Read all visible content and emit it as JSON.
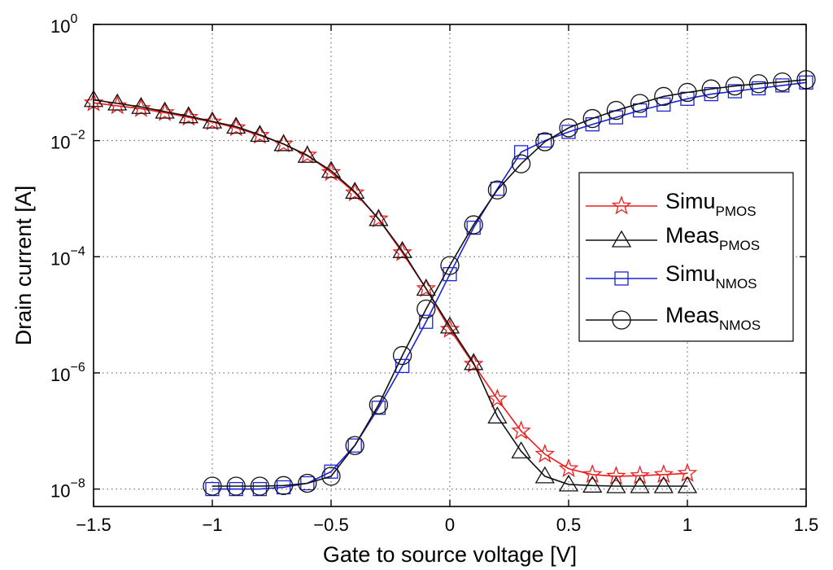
{
  "chart_data": {
    "type": "line",
    "title": "",
    "xlabel": "Gate to source voltage [V]",
    "ylabel": "Drain current [A]",
    "xlim": [
      -1.5,
      1.5
    ],
    "ylim_log10": [
      -8.3,
      0
    ],
    "y_scale": "log",
    "grid": true,
    "legend_position": "right",
    "x_ticks": [
      -1.5,
      -1,
      -0.5,
      0,
      0.5,
      1,
      1.5
    ],
    "x_tick_labels": [
      "−1.5",
      "−1",
      "−0.5",
      "0",
      "0.5",
      "1",
      "1.5"
    ],
    "y_ticks": [
      {
        "base": "10",
        "exp": "0",
        "log": 0
      },
      {
        "base": "10",
        "exp": "−2",
        "log": -2
      },
      {
        "base": "10",
        "exp": "−4",
        "log": -4
      },
      {
        "base": "10",
        "exp": "−6",
        "log": -6
      },
      {
        "base": "10",
        "exp": "−8",
        "log": -8
      }
    ],
    "series": [
      {
        "name": "Simu",
        "sub": "PMOS",
        "color": "#ee1c1c",
        "marker": "star",
        "x": [
          -1.5,
          -1.4,
          -1.3,
          -1.2,
          -1.1,
          -1.0,
          -0.9,
          -0.8,
          -0.7,
          -0.6,
          -0.5,
          -0.4,
          -0.3,
          -0.2,
          -0.1,
          0.0,
          0.1,
          0.2,
          0.3,
          0.4,
          0.5,
          0.6,
          0.7,
          0.8,
          0.9,
          1.0
        ],
        "log10_y": [
          -1.35,
          -1.4,
          -1.45,
          -1.52,
          -1.6,
          -1.68,
          -1.78,
          -1.91,
          -2.06,
          -2.25,
          -2.55,
          -2.9,
          -3.35,
          -3.93,
          -4.55,
          -5.25,
          -5.85,
          -6.45,
          -7.0,
          -7.4,
          -7.65,
          -7.75,
          -7.78,
          -7.77,
          -7.75,
          -7.73
        ]
      },
      {
        "name": "Meas",
        "sub": "PMOS",
        "color": "#111111",
        "marker": "triangle",
        "x": [
          -1.5,
          -1.4,
          -1.3,
          -1.2,
          -1.1,
          -1.0,
          -0.9,
          -0.8,
          -0.7,
          -0.6,
          -0.5,
          -0.4,
          -0.3,
          -0.2,
          -0.1,
          0.0,
          0.1,
          0.2,
          0.3,
          0.4,
          0.5,
          0.6,
          0.7,
          0.8,
          0.9,
          1.0
        ],
        "log10_y": [
          -1.3,
          -1.36,
          -1.42,
          -1.5,
          -1.58,
          -1.67,
          -1.76,
          -1.9,
          -2.06,
          -2.26,
          -2.52,
          -2.88,
          -3.35,
          -3.9,
          -4.55,
          -5.2,
          -5.83,
          -6.75,
          -7.35,
          -7.78,
          -7.92,
          -7.94,
          -7.95,
          -7.95,
          -7.95,
          -7.95
        ]
      },
      {
        "name": "Simu",
        "sub": "NMOS",
        "color": "#1a22d8",
        "marker": "square",
        "x": [
          -1.0,
          -0.9,
          -0.8,
          -0.7,
          -0.6,
          -0.5,
          -0.4,
          -0.3,
          -0.2,
          -0.1,
          0.0,
          0.1,
          0.2,
          0.3,
          0.4,
          0.5,
          0.6,
          0.7,
          0.8,
          0.9,
          1.0,
          1.1,
          1.2,
          1.3,
          1.4,
          1.5
        ],
        "log10_y": [
          -8.0,
          -8.0,
          -8.0,
          -7.97,
          -7.9,
          -7.7,
          -7.25,
          -6.6,
          -5.88,
          -5.12,
          -4.3,
          -3.5,
          -2.83,
          -2.2,
          -2.0,
          -1.85,
          -1.72,
          -1.6,
          -1.48,
          -1.38,
          -1.28,
          -1.2,
          -1.15,
          -1.1,
          -1.05,
          -1.0
        ]
      },
      {
        "name": "Meas",
        "sub": "NMOS",
        "color": "#111111",
        "marker": "circle",
        "x": [
          -1.0,
          -0.9,
          -0.8,
          -0.7,
          -0.6,
          -0.5,
          -0.4,
          -0.3,
          -0.2,
          -0.1,
          0.0,
          0.1,
          0.2,
          0.3,
          0.4,
          0.5,
          0.6,
          0.7,
          0.8,
          0.9,
          1.0,
          1.1,
          1.2,
          1.3,
          1.4,
          1.5
        ],
        "log10_y": [
          -7.95,
          -7.95,
          -7.95,
          -7.94,
          -7.9,
          -7.78,
          -7.25,
          -6.55,
          -5.7,
          -4.9,
          -4.15,
          -3.45,
          -2.85,
          -2.4,
          -2.02,
          -1.78,
          -1.62,
          -1.48,
          -1.36,
          -1.24,
          -1.17,
          -1.11,
          -1.06,
          -1.02,
          -0.99,
          -0.95
        ]
      }
    ]
  }
}
